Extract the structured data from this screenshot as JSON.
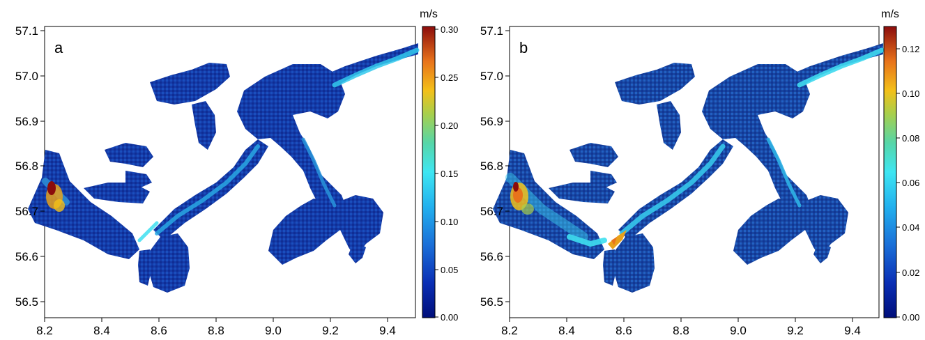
{
  "panels": [
    {
      "label": "a",
      "colorbar": {
        "unit": "m/s",
        "ticks": [
          "0.30",
          "0.25",
          "0.20",
          "0.15",
          "0.10",
          "0.05",
          "0.00"
        ],
        "min": 0,
        "max": 0.3
      },
      "x_ticks": [
        "8.2",
        "8.4",
        "8.6",
        "8.8",
        "9.0",
        "9.2",
        "9.4"
      ],
      "y_ticks": [
        "57.1",
        "57.0",
        "56.9",
        "56.8",
        "56.7",
        "56.6",
        "56.5"
      ]
    },
    {
      "label": "b",
      "colorbar": {
        "unit": "m/s",
        "ticks": [
          "0.12",
          "0.10",
          "0.08",
          "0.06",
          "0.04",
          "0.02",
          "0.00"
        ],
        "min": 0,
        "max": 0.13
      },
      "x_ticks": [
        "8.2",
        "8.4",
        "8.6",
        "8.8",
        "9.0",
        "9.2",
        "9.4"
      ],
      "y_ticks": [
        "57.1",
        "57.0",
        "56.9",
        "56.8",
        "56.7",
        "56.6",
        "56.5"
      ]
    }
  ],
  "colors": {
    "low": "#0a1f8f",
    "mid_low": "#1d5fc9",
    "mid": "#2ab4e8",
    "cyan": "#3fe3f0",
    "yellow": "#f3c019",
    "orange": "#e8731b",
    "high": "#8b0c0c"
  }
}
